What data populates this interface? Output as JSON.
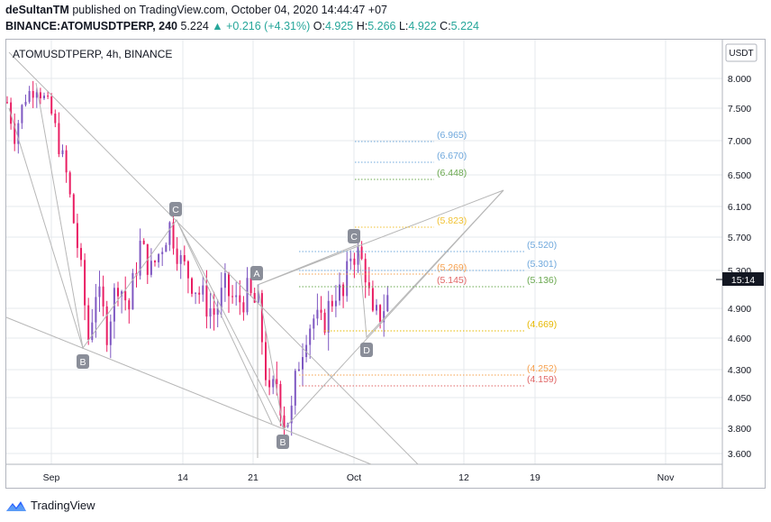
{
  "header": {
    "publisher": "deSultanTM",
    "published_text": "published on TradingView.com, October 04, 2020 14:44:47 +07",
    "symbol": "BINANCE:ATOMUSDTPERP, 240",
    "last": "5.224",
    "change": "+0.216 (+4.31%)",
    "o_label": "O:",
    "o": "4.925",
    "h_label": "H:",
    "h": "5.266",
    "l_label": "L:",
    "l": "4.922",
    "c_label": "C:",
    "c": "5.224"
  },
  "chart_data": {
    "type": "line",
    "title": "ATOMUSDTPERP, 4h, BINANCE",
    "currency": "USDT",
    "current_price_label": "5.224",
    "countdown": "15:14",
    "y_axis_ticks": [
      "8.000",
      "7.500",
      "7.000",
      "6.500",
      "6.100",
      "5.700",
      "5.300",
      "4.900",
      "4.600",
      "4.300",
      "4.050",
      "3.800",
      "3.600"
    ],
    "x_axis_ticks": [
      "Sep",
      "14",
      "21",
      "Oct",
      "12",
      "19",
      "Nov"
    ],
    "ylim": [
      3.55,
      8.1
    ],
    "series": [
      {
        "values": [
          [
            0,
            7.6
          ],
          [
            2,
            7.1
          ],
          [
            5,
            7.7
          ],
          [
            8,
            7.9
          ],
          [
            12,
            7.4
          ],
          [
            16,
            6.5
          ],
          [
            19,
            5.6
          ],
          [
            22,
            4.6
          ],
          [
            24,
            5.1
          ],
          [
            27,
            4.7
          ],
          [
            30,
            5.2
          ],
          [
            33,
            4.9
          ],
          [
            36,
            5.6
          ],
          [
            39,
            5.3
          ],
          [
            41,
            5.5
          ],
          [
            44,
            5.85
          ],
          [
            47,
            5.4
          ],
          [
            50,
            5.2
          ],
          [
            53,
            5.0
          ],
          [
            56,
            4.85
          ],
          [
            59,
            5.1
          ],
          [
            62,
            4.95
          ],
          [
            65,
            5.05
          ],
          [
            68,
            4.9
          ],
          [
            71,
            4.0
          ],
          [
            73,
            4.2
          ],
          [
            75,
            3.9
          ],
          [
            77,
            3.9
          ],
          [
            79,
            4.4
          ],
          [
            81,
            4.7
          ],
          [
            83,
            4.8
          ],
          [
            85,
            4.7
          ],
          [
            87,
            4.9
          ],
          [
            89,
            5.1
          ],
          [
            91,
            5.0
          ],
          [
            93,
            5.5
          ],
          [
            95,
            5.5
          ],
          [
            97,
            5.3
          ],
          [
            99,
            4.75
          ],
          [
            101,
            4.85
          ],
          [
            103,
            5.0
          ],
          [
            104,
            5.0
          ]
        ]
      }
    ],
    "wave_labels": [
      "B",
      "C",
      "A",
      "B",
      "C",
      "D"
    ],
    "levels_blue": [
      "(6.965)",
      "(6.670)",
      "(5.520)",
      "(5.301)"
    ],
    "levels_green": [
      "(6.448)",
      "(5.136)"
    ],
    "levels_yellow": [
      "(5.823)",
      "(4.669)"
    ],
    "levels_orange": [
      "(5.269)",
      "(4.252)"
    ],
    "levels_red": [
      "(5.145)",
      "(4.159)"
    ],
    "colors": {
      "up": "#26a69a",
      "down": "#ef5350",
      "candle_up": "#7e57c2",
      "candle_down": "#e91e63",
      "blue": "#6fa8dc",
      "green": "#6aa84f",
      "yellow": "#f1c232",
      "orange": "#f6b26b",
      "red": "#e06666",
      "grid": "#e6e8ec",
      "drawing": "#b7b7b7"
    }
  },
  "footer": {
    "brand": "TradingView"
  }
}
